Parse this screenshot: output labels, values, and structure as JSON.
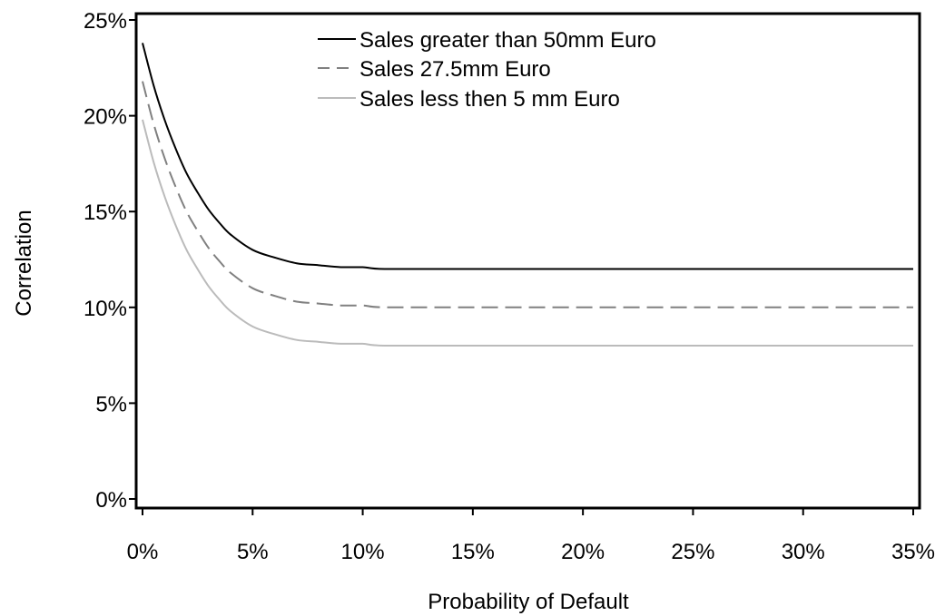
{
  "chart_data": {
    "type": "line",
    "xlabel": "Probability of Default",
    "ylabel": "Correlation",
    "xlim": [
      0,
      35
    ],
    "ylim": [
      0,
      25
    ],
    "x_ticks": [
      "0%",
      "5%",
      "10%",
      "15%",
      "20%",
      "25%",
      "30%",
      "35%"
    ],
    "y_ticks": [
      "0%",
      "5%",
      "10%",
      "15%",
      "20%",
      "25%"
    ],
    "x_tick_values": [
      0,
      5,
      10,
      15,
      20,
      25,
      30,
      35
    ],
    "y_tick_values": [
      0,
      5,
      10,
      15,
      20,
      25
    ],
    "grid": false,
    "legend_position": "top",
    "series": [
      {
        "name": "Sales greater than 50mm Euro",
        "color": "#000000",
        "dash": "solid",
        "x": [
          0,
          0.5,
          1,
          1.5,
          2,
          2.5,
          3,
          3.5,
          4,
          5,
          6,
          7,
          8,
          9,
          10,
          11,
          15,
          20,
          25,
          30,
          35
        ],
        "y": [
          23.8,
          21.6,
          19.8,
          18.3,
          17.0,
          16.0,
          15.1,
          14.4,
          13.8,
          13.0,
          12.6,
          12.3,
          12.2,
          12.1,
          12.1,
          12.0,
          12.0,
          12.0,
          12.0,
          12.0,
          12.0
        ]
      },
      {
        "name": "Sales 27.5mm Euro",
        "color": "#808080",
        "dash": "dashed",
        "x": [
          0,
          0.5,
          1,
          1.5,
          2,
          2.5,
          3,
          3.5,
          4,
          5,
          6,
          7,
          8,
          9,
          10,
          11,
          15,
          20,
          25,
          30,
          35
        ],
        "y": [
          21.8,
          19.6,
          17.8,
          16.3,
          15.0,
          14.0,
          13.1,
          12.4,
          11.8,
          11.0,
          10.6,
          10.3,
          10.2,
          10.1,
          10.1,
          10.0,
          10.0,
          10.0,
          10.0,
          10.0,
          10.0
        ]
      },
      {
        "name": "Sales less then 5 mm Euro",
        "color": "#bbbbbb",
        "dash": "solid",
        "x": [
          0,
          0.5,
          1,
          1.5,
          2,
          2.5,
          3,
          3.5,
          4,
          5,
          6,
          7,
          8,
          9,
          10,
          11,
          15,
          20,
          25,
          30,
          35
        ],
        "y": [
          19.8,
          17.6,
          15.8,
          14.3,
          13.0,
          12.0,
          11.1,
          10.4,
          9.8,
          9.0,
          8.6,
          8.3,
          8.2,
          8.1,
          8.1,
          8.0,
          8.0,
          8.0,
          8.0,
          8.0,
          8.0
        ]
      }
    ]
  }
}
